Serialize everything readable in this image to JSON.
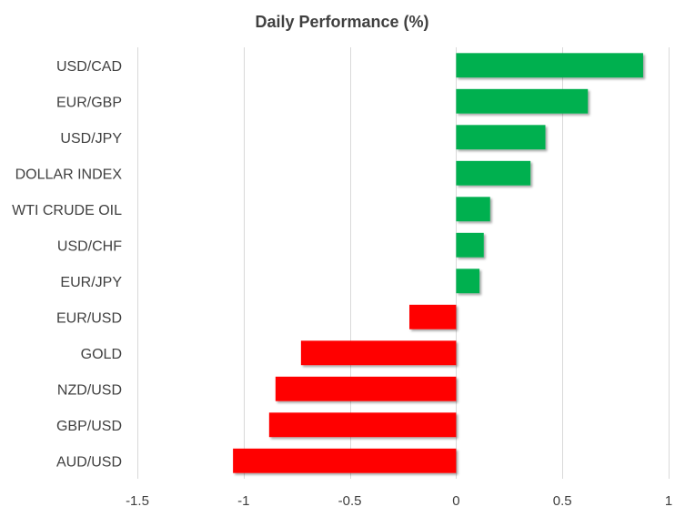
{
  "chart_data": {
    "type": "bar",
    "orientation": "horizontal",
    "title": "Daily Performance  (%)",
    "categories": [
      "USD/CAD",
      "EUR/GBP",
      "USD/JPY",
      "DOLLAR INDEX",
      "WTI CRUDE OIL",
      "USD/CHF",
      "EUR/JPY",
      "EUR/USD",
      "GOLD",
      "NZD/USD",
      "GBP/USD",
      "AUD/USD"
    ],
    "values": [
      0.88,
      0.62,
      0.42,
      0.35,
      0.16,
      0.13,
      0.11,
      -0.22,
      -0.73,
      -0.85,
      -0.88,
      -1.05
    ],
    "xlim": [
      -1.5,
      1
    ],
    "xticks": [
      -1.5,
      -1,
      -0.5,
      0,
      0.5,
      1
    ],
    "xtick_labels": [
      "-1.5",
      "-1",
      "-0.5",
      "0",
      "0.5",
      "1"
    ],
    "grid": true,
    "colors": {
      "positive": "#00b050",
      "negative": "#ff0000",
      "grid": "#d9d9d9"
    }
  }
}
